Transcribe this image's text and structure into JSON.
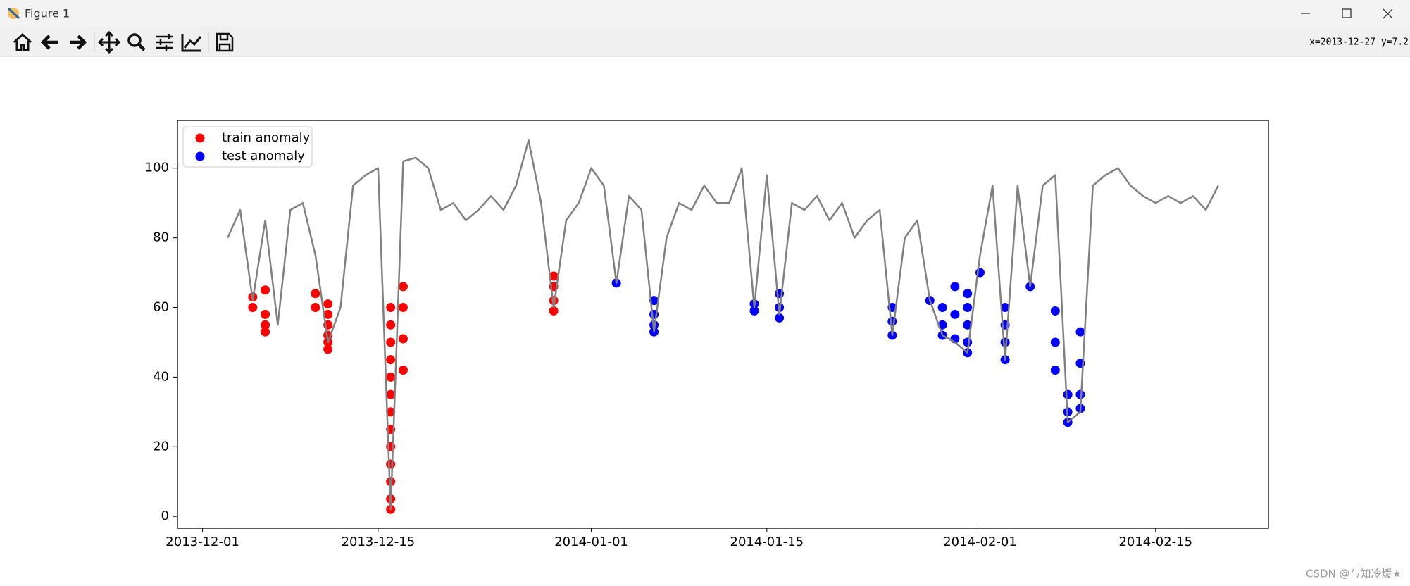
{
  "window": {
    "title": "Figure 1",
    "status": "x=2013-12-27 y=7.2",
    "watermark": "CSDN @ㄣ知冷煖★"
  },
  "chart_data": {
    "type": "line",
    "xlim": [
      "2013-11-29",
      "2014-02-24"
    ],
    "xticks": [
      "2013-12-01",
      "2013-12-15",
      "2014-01-01",
      "2014-01-15",
      "2014-02-01",
      "2014-02-15"
    ],
    "ylim": [
      -3.4,
      113.7
    ],
    "yticks": [
      0,
      20,
      40,
      60,
      80,
      100
    ],
    "legend": "upper left",
    "line": {
      "color": "#808080",
      "x": [
        "2013-12-03",
        "2013-12-04",
        "2013-12-05",
        "2013-12-06",
        "2013-12-07",
        "2013-12-08",
        "2013-12-09",
        "2013-12-10",
        "2013-12-11",
        "2013-12-12",
        "2013-12-13",
        "2013-12-14",
        "2013-12-15",
        "2013-12-16",
        "2013-12-17",
        "2013-12-18",
        "2013-12-19",
        "2013-12-20",
        "2013-12-21",
        "2013-12-22",
        "2013-12-23",
        "2013-12-24",
        "2013-12-25",
        "2013-12-26",
        "2013-12-27",
        "2013-12-28",
        "2013-12-29",
        "2013-12-30",
        "2013-12-31",
        "2014-01-01",
        "2014-01-02",
        "2014-01-03",
        "2014-01-04",
        "2014-01-05",
        "2014-01-06",
        "2014-01-07",
        "2014-01-08",
        "2014-01-09",
        "2014-01-10",
        "2014-01-11",
        "2014-01-12",
        "2014-01-13",
        "2014-01-14",
        "2014-01-15",
        "2014-01-16",
        "2014-01-17",
        "2014-01-18",
        "2014-01-19",
        "2014-01-20",
        "2014-01-21",
        "2014-01-22",
        "2014-01-23",
        "2014-01-24",
        "2014-01-25",
        "2014-01-26",
        "2014-01-27",
        "2014-01-28",
        "2014-01-29",
        "2014-01-30",
        "2014-01-31",
        "2014-02-01",
        "2014-02-02",
        "2014-02-03",
        "2014-02-04",
        "2014-02-05",
        "2014-02-06",
        "2014-02-07",
        "2014-02-08",
        "2014-02-09",
        "2014-02-10",
        "2014-02-11",
        "2014-02-12",
        "2014-02-13",
        "2014-02-14",
        "2014-02-15",
        "2014-02-16",
        "2014-02-17",
        "2014-02-18",
        "2014-02-19",
        "2014-02-20"
      ],
      "values": [
        80,
        88,
        62,
        85,
        55,
        88,
        90,
        75,
        50,
        60,
        95,
        98,
        100,
        2,
        102,
        103,
        100,
        88,
        90,
        85,
        88,
        92,
        88,
        95,
        108,
        90,
        60,
        85,
        90,
        100,
        95,
        67,
        92,
        88,
        53,
        80,
        90,
        88,
        95,
        90,
        90,
        100,
        60,
        98,
        58,
        90,
        88,
        92,
        85,
        90,
        80,
        85,
        88,
        52,
        80,
        85,
        62,
        52,
        50,
        47,
        75,
        95,
        45,
        95,
        66,
        95,
        98,
        27,
        30,
        95,
        98,
        100,
        95,
        92,
        90,
        92,
        90,
        92,
        88,
        95
      ]
    },
    "series": [
      {
        "type": "scatter",
        "name": "train anomaly",
        "color": "#ff0000",
        "x": [
          "2013-12-05",
          "2013-12-05",
          "2013-12-06",
          "2013-12-06",
          "2013-12-06",
          "2013-12-06",
          "2013-12-10",
          "2013-12-10",
          "2013-12-11",
          "2013-12-11",
          "2013-12-11",
          "2013-12-11",
          "2013-12-11",
          "2013-12-11",
          "2013-12-16",
          "2013-12-16",
          "2013-12-16",
          "2013-12-16",
          "2013-12-16",
          "2013-12-16",
          "2013-12-16",
          "2013-12-16",
          "2013-12-16",
          "2013-12-16",
          "2013-12-16",
          "2013-12-16",
          "2013-12-16",
          "2013-12-17",
          "2013-12-17",
          "2013-12-17",
          "2013-12-17",
          "2013-12-29",
          "2013-12-29",
          "2013-12-29",
          "2013-12-29"
        ],
        "values": [
          60,
          63,
          65,
          58,
          55,
          53,
          64,
          60,
          55,
          50,
          48,
          52,
          58,
          61,
          60,
          55,
          50,
          45,
          40,
          35,
          30,
          25,
          20,
          15,
          10,
          5,
          2,
          66,
          60,
          51,
          42,
          69,
          66,
          62,
          59
        ]
      },
      {
        "type": "scatter",
        "name": "test anomaly",
        "color": "#0000ff",
        "x": [
          "2014-01-03",
          "2014-01-06",
          "2014-01-06",
          "2014-01-06",
          "2014-01-06",
          "2014-01-14",
          "2014-01-14",
          "2014-01-16",
          "2014-01-16",
          "2014-01-16",
          "2014-01-25",
          "2014-01-25",
          "2014-01-25",
          "2014-01-28",
          "2014-01-29",
          "2014-01-29",
          "2014-01-29",
          "2014-01-30",
          "2014-01-30",
          "2014-01-30",
          "2014-01-31",
          "2014-01-31",
          "2014-01-31",
          "2014-01-31",
          "2014-01-31",
          "2014-02-01",
          "2014-02-03",
          "2014-02-03",
          "2014-02-03",
          "2014-02-03",
          "2014-02-05",
          "2014-02-07",
          "2014-02-07",
          "2014-02-07",
          "2014-02-08",
          "2014-02-08",
          "2014-02-08",
          "2014-02-09",
          "2014-02-09",
          "2014-02-09",
          "2014-02-09"
        ],
        "values": [
          67,
          62,
          58,
          55,
          53,
          61,
          59,
          64,
          60,
          57,
          60,
          56,
          52,
          62,
          60,
          55,
          52,
          66,
          58,
          51,
          64,
          60,
          55,
          50,
          47,
          70,
          60,
          55,
          50,
          45,
          66,
          59,
          50,
          42,
          35,
          30,
          27,
          53,
          44,
          35,
          31
        ]
      }
    ]
  }
}
